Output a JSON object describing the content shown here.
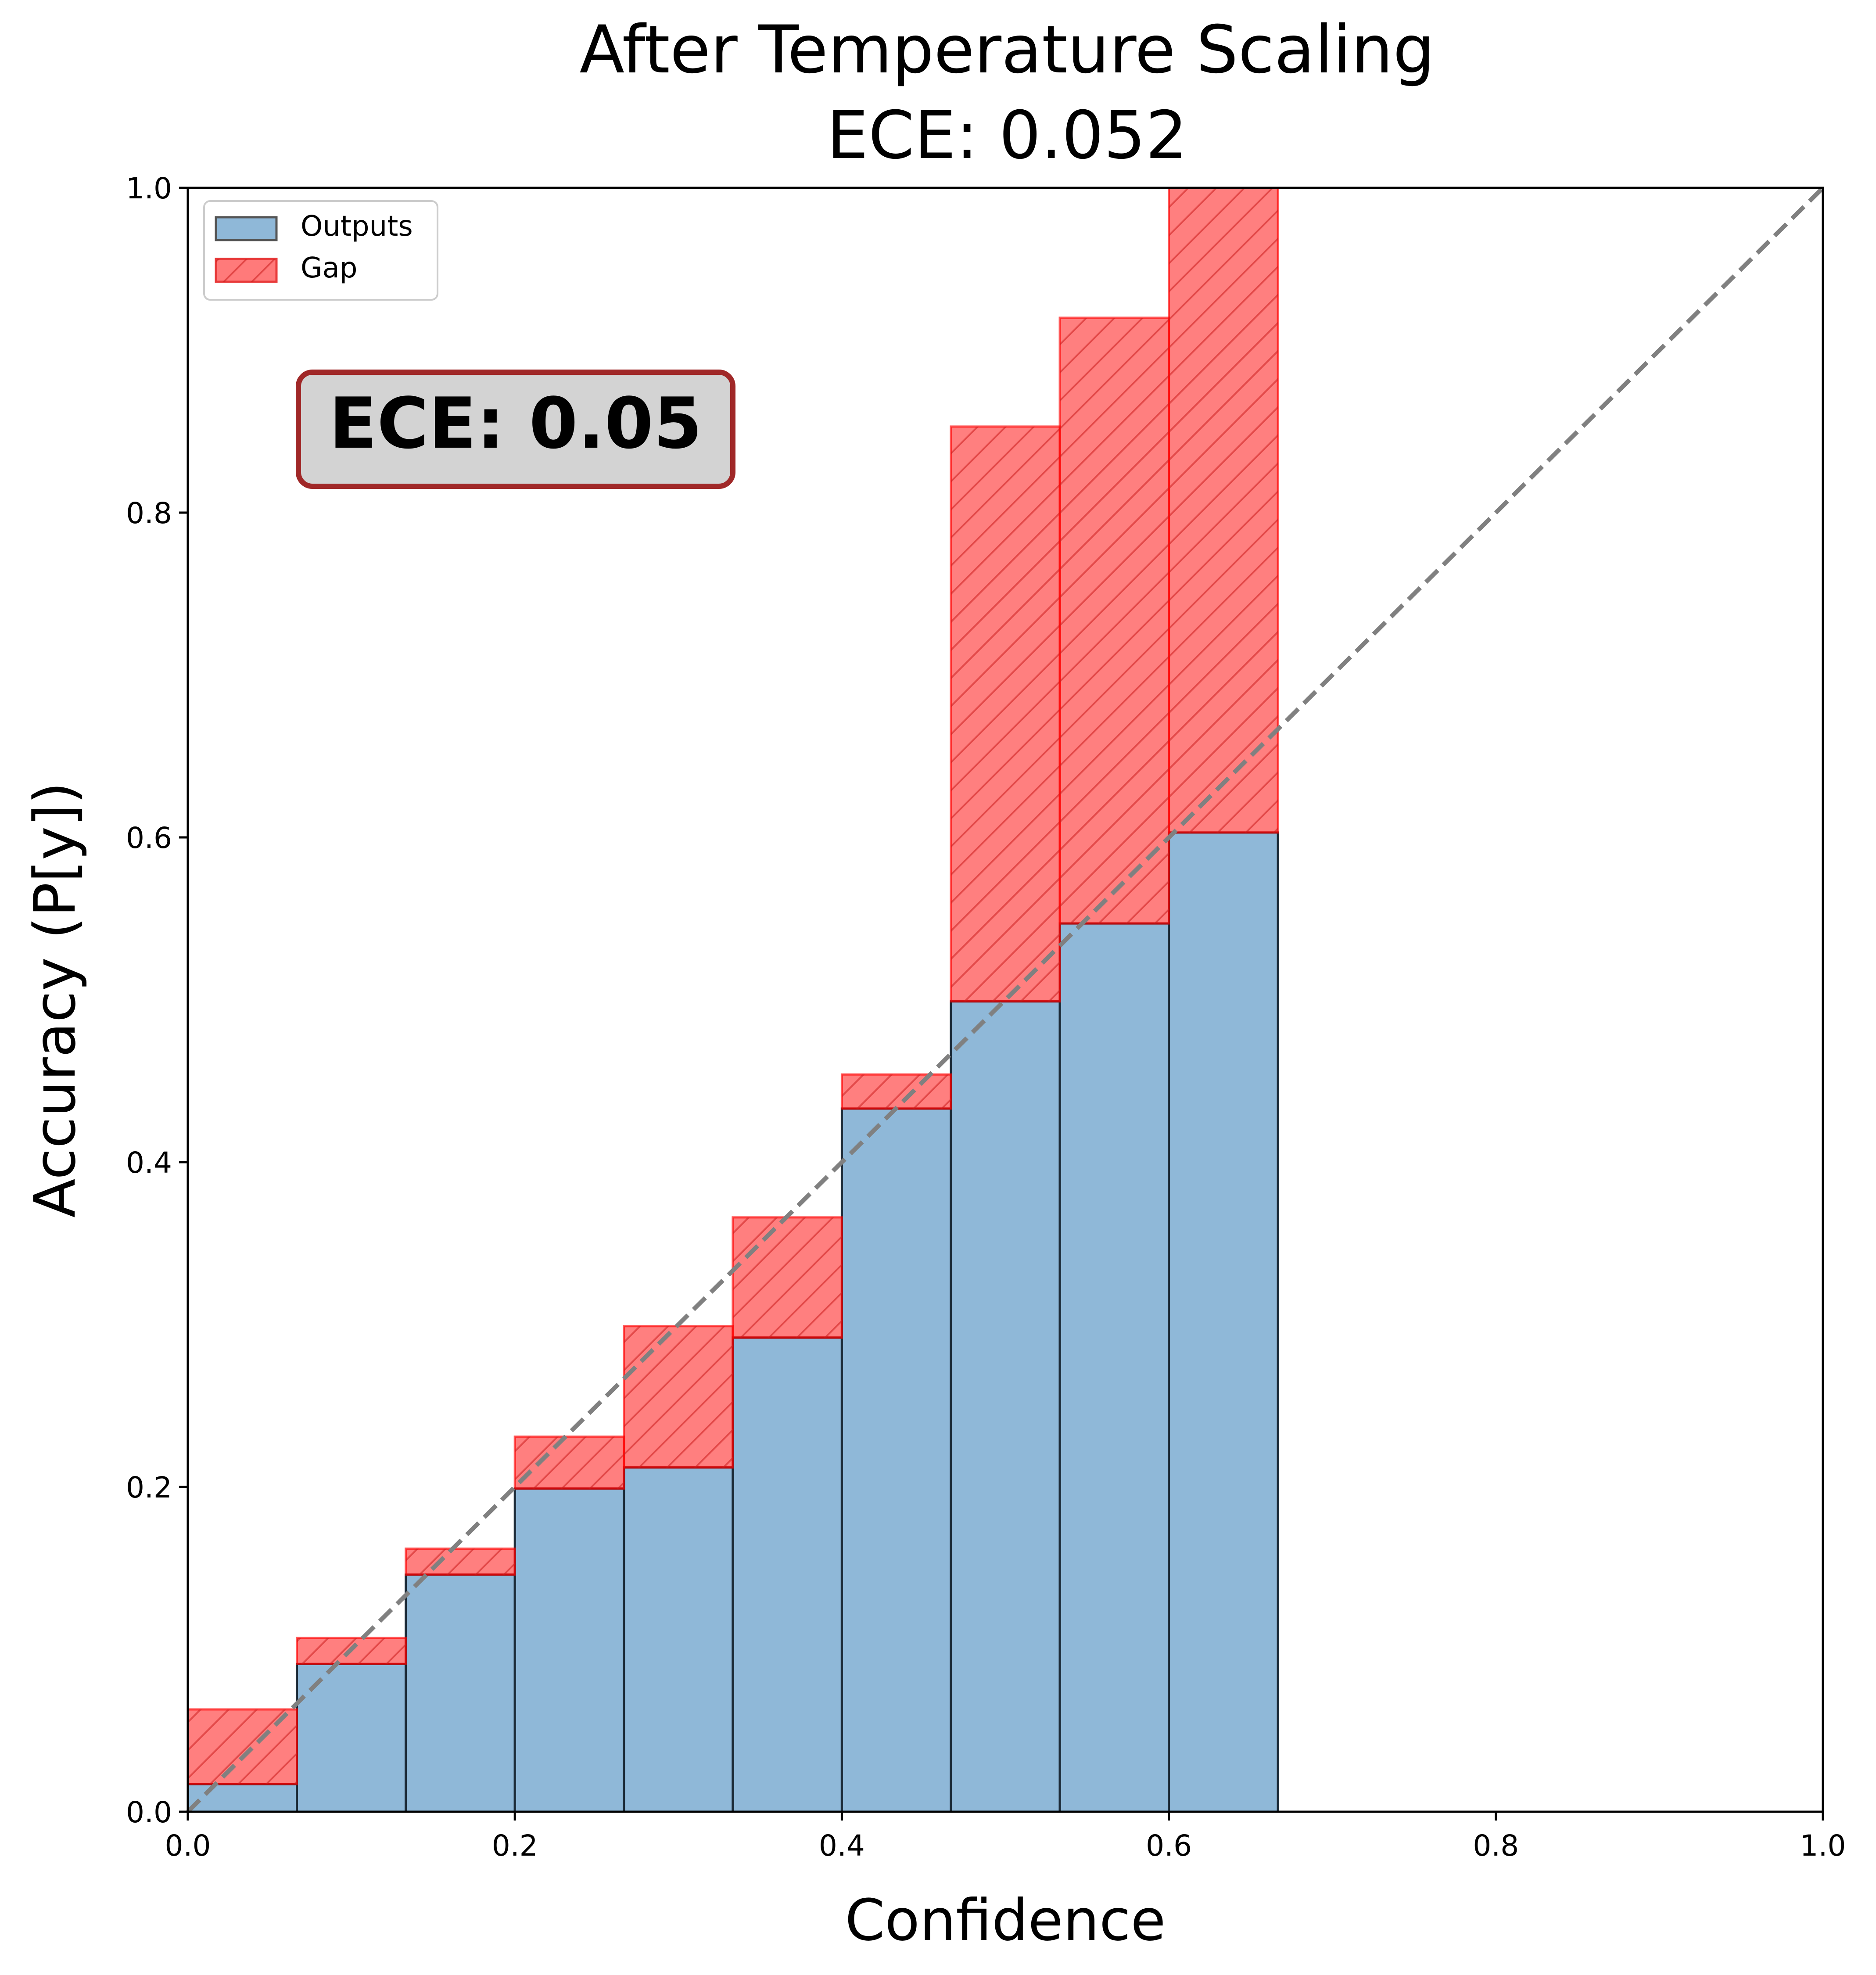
{
  "chart_data": {
    "type": "bar",
    "title": "After Temperature Scaling",
    "subtitle": "ECE: 0.052",
    "xlabel": "Confidence",
    "ylabel": "Accuracy (P[y])",
    "xlim": [
      0.0,
      1.0
    ],
    "ylim": [
      0.0,
      1.0
    ],
    "xticks": [
      "0.0",
      "0.2",
      "0.4",
      "0.6",
      "0.8",
      "1.0"
    ],
    "yticks": [
      "0.0",
      "0.2",
      "0.4",
      "0.6",
      "0.8",
      "1.0"
    ],
    "grid": false,
    "legend_position": "top-left",
    "bin_edges": [
      0.0,
      0.0667,
      0.1333,
      0.2,
      0.2667,
      0.3333,
      0.4,
      0.4667,
      0.5333,
      0.6,
      0.6667,
      0.7333,
      0.8,
      0.8667,
      0.9333,
      1.0
    ],
    "series": [
      {
        "name": "Outputs",
        "color": "#8fb8d8",
        "values": [
          0.017,
          0.091,
          0.146,
          0.199,
          0.212,
          0.292,
          0.433,
          0.499,
          0.547,
          0.603,
          0,
          0,
          0,
          0,
          0
        ]
      },
      {
        "name": "Gap",
        "color": "#ff0000",
        "bottom": [
          0.017,
          0.091,
          0.146,
          0.199,
          0.212,
          0.292,
          0.433,
          0.499,
          0.547,
          0.603,
          0,
          0,
          0,
          0,
          0
        ],
        "top": [
          0.063,
          0.107,
          0.162,
          0.231,
          0.299,
          0.366,
          0.454,
          0.853,
          0.92,
          1.0,
          0,
          0,
          0,
          0,
          0
        ]
      }
    ],
    "diagonal": {
      "style": "dashed",
      "color": "#808080"
    },
    "annotation": {
      "text": "ECE: 0.05",
      "background": "#d3d3d3",
      "border": "#a02828"
    }
  }
}
